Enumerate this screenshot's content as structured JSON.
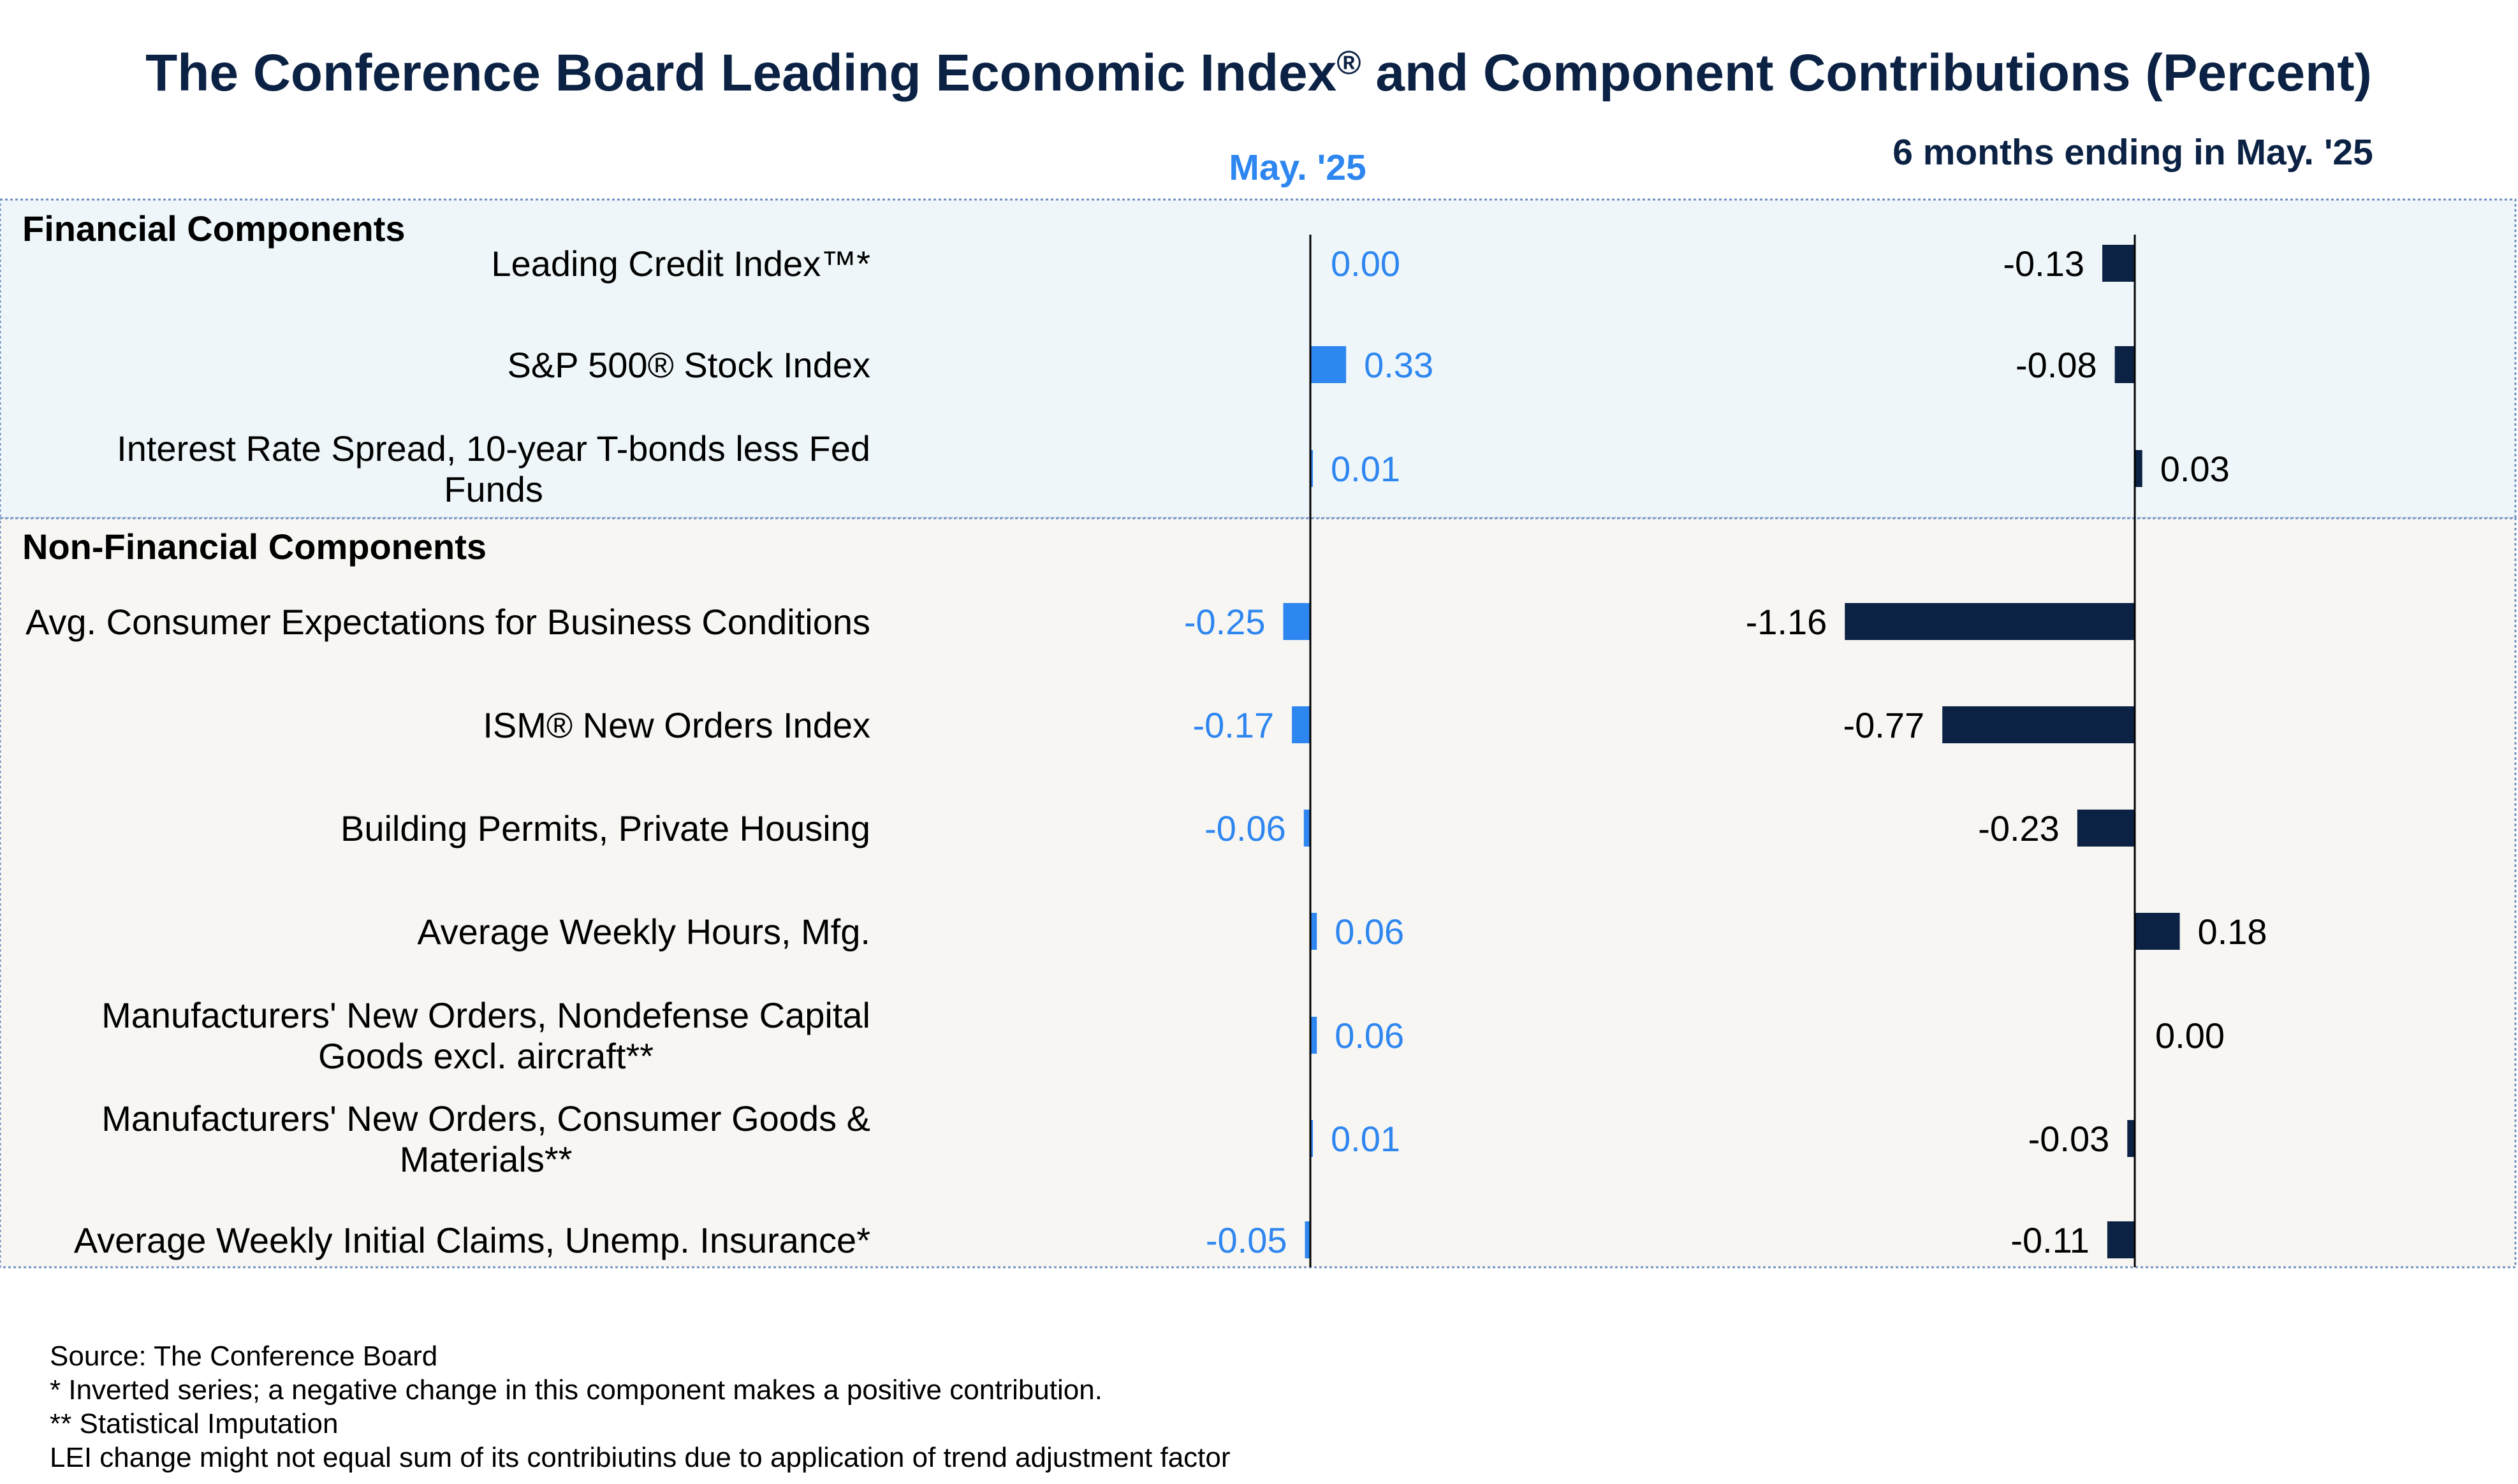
{
  "chart_data": {
    "type": "bar",
    "orientation": "horizontal",
    "title_main": "The Conference Board Leading Economic Index",
    "title_reg": "®",
    "title_tail": " and Component Contributions (Percent)",
    "columns": [
      {
        "header": "May. '25",
        "color": "#2e86f0",
        "label_color": "#2e86f0"
      },
      {
        "header": "6 months ending in May. '25",
        "color": "#0b2244",
        "label_color": "#000000"
      }
    ],
    "sections": [
      {
        "name": "Financial Components",
        "rows": [
          {
            "label": [
              "Leading Credit Index™*"
            ],
            "values": [
              "0.00",
              "-0.13"
            ]
          },
          {
            "label": [
              "S&P 500® Stock Index"
            ],
            "values": [
              "0.33",
              "-0.08"
            ]
          },
          {
            "label": [
              "Interest Rate Spread, 10-year T-bonds less Fed",
              "Funds"
            ],
            "values": [
              "0.01",
              "0.03"
            ]
          }
        ]
      },
      {
        "name": "Non-Financial Components",
        "rows": [
          {
            "label": [
              "Avg. Consumer Expectations for Business Conditions"
            ],
            "values": [
              "-0.25",
              "-1.16"
            ]
          },
          {
            "label": [
              "ISM® New Orders Index"
            ],
            "values": [
              "-0.17",
              "-0.77"
            ]
          },
          {
            "label": [
              "Building Permits, Private Housing"
            ],
            "values": [
              "-0.06",
              "-0.23"
            ]
          },
          {
            "label": [
              "Average Weekly Hours, Mfg."
            ],
            "values": [
              "0.06",
              "0.18"
            ]
          },
          {
            "label": [
              "Manufacturers' New Orders, Nondefense Capital",
              "Goods excl. aircraft**"
            ],
            "values": [
              "0.06",
              "0.00"
            ]
          },
          {
            "label": [
              "Manufacturers' New Orders, Consumer Goods &",
              "Materials**"
            ],
            "values": [
              "0.01",
              "-0.03"
            ]
          },
          {
            "label": [
              "Average Weekly Initial Claims, Unemp. Insurance*"
            ],
            "values": [
              "-0.05",
              "-0.11"
            ]
          }
        ]
      }
    ],
    "section_backgrounds": [
      "#eef6f9",
      "#f7f6f3"
    ]
  },
  "footnotes": [
    "Source: The Conference Board",
    "*  Inverted series; a negative change in this component makes a positive contribution.",
    "**  Statistical Imputation",
    "LEI change might not equal sum of its contribiutins due to application of trend adjustment factor"
  ]
}
